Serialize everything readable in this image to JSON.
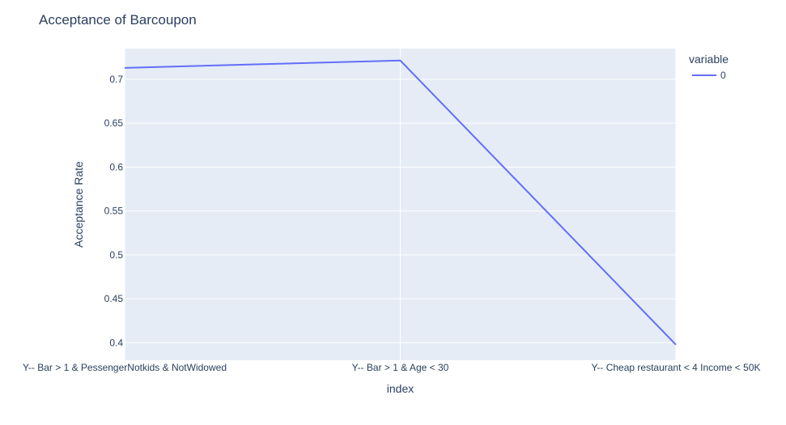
{
  "chart_data": {
    "type": "line",
    "title": "Acceptance of Barcoupon",
    "xlabel": "index",
    "ylabel": "Acceptance Rate",
    "categories": [
      "Y-- Bar > 1 & PessengerNotkids & NotWidowed",
      "Y-- Bar > 1 & Age < 30",
      "Y-- Cheap restaurant < 4 Income < 50K"
    ],
    "series": [
      {
        "name": "0",
        "values": [
          0.713,
          0.7214,
          0.3977
        ],
        "color": "#636efa"
      }
    ],
    "ylim": [
      0.38,
      0.735
    ],
    "yticks": [
      "0.4",
      "0.45",
      "0.5",
      "0.55",
      "0.6",
      "0.65",
      "0.7"
    ],
    "legend": {
      "title": "variable",
      "position": "top-right"
    },
    "grid": true,
    "plot_bgcolor": "#e5ecf6",
    "gridcolor": "#ffffff"
  }
}
